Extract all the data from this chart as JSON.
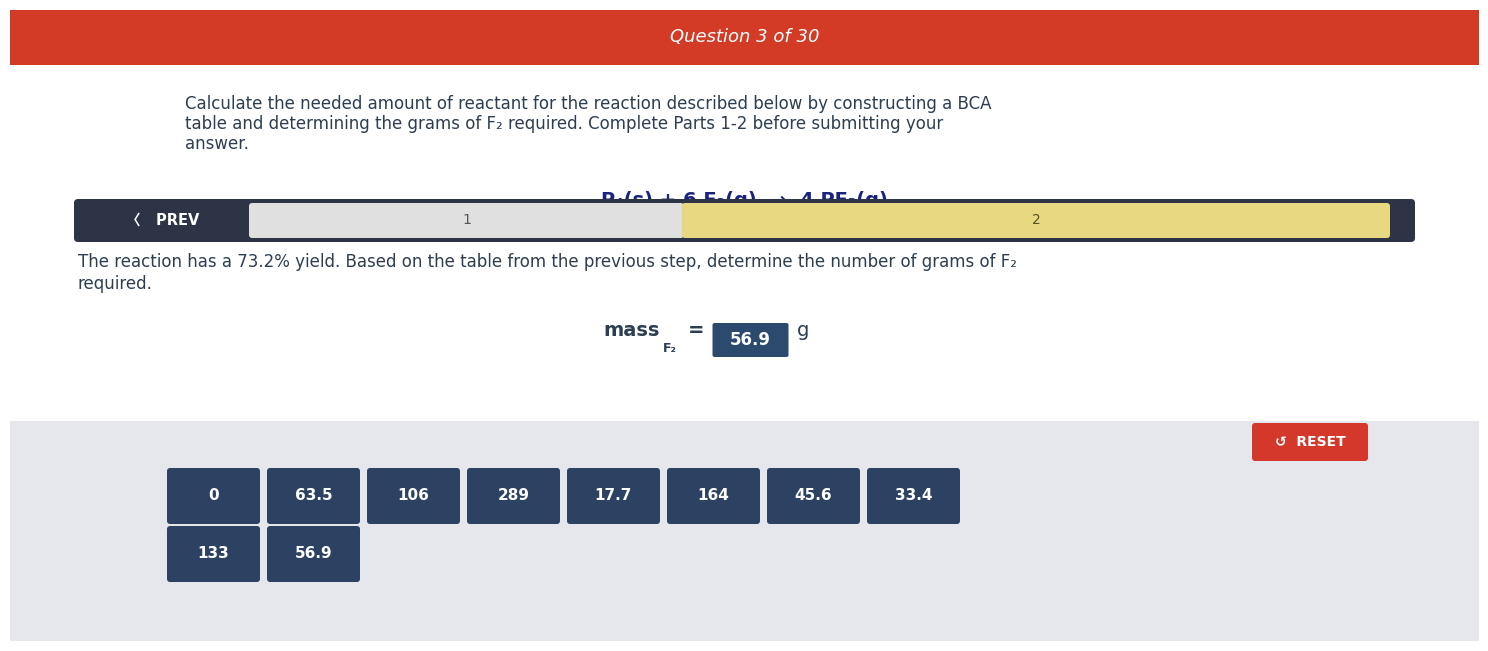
{
  "header_text": "Question 3 of 30",
  "header_bg": "#d43b27",
  "header_text_color": "#ffffff",
  "body_bg": "#ffffff",
  "bottom_bg": "#e5e7ed",
  "question_text_line1": "Calculate the needed amount of reactant for the reaction described below by constructing a BCA",
  "question_text_line2": "table and determining the grams of F₂ required. Complete Parts 1-2 before submitting your",
  "question_text_line3": "answer.",
  "question_text_color": "#2c3e50",
  "question_fontsize": 12,
  "equation": "P₄(s) + 6 F₂(g)  →  4 PF₃(g)",
  "equation_color": "#1a237e",
  "equation_fontsize": 14,
  "nav_bar_bg": "#2c3445",
  "nav_prev_text": "〈   PREV",
  "nav_prev_color": "#ffffff",
  "nav_section1_text": "1",
  "nav_section1_bg": "#e0e0e0",
  "nav_section2_text": "2",
  "nav_section2_bg": "#e8d882",
  "body_text_line1": "The reaction has a 73.2% yield. Based on the table from the previous step, determine the number of grams of F₂",
  "body_text_line2": "required.",
  "body_text_color": "#2c3e50",
  "body_fontsize": 12,
  "mass_value": "56.9",
  "mass_unit": "g",
  "mass_box_bg": "#2c4a6e",
  "mass_text_color": "#ffffff",
  "reset_text": "↺  RESET",
  "reset_bg": "#d4382a",
  "reset_text_color": "#ffffff",
  "button_values": [
    "0",
    "63.5",
    "106",
    "289",
    "17.7",
    "164",
    "45.6",
    "33.4"
  ],
  "button_values_row2": [
    "133",
    "56.9"
  ],
  "button_bg": "#2d4263",
  "button_text_color": "#ffffff",
  "button_fontsize": 11
}
